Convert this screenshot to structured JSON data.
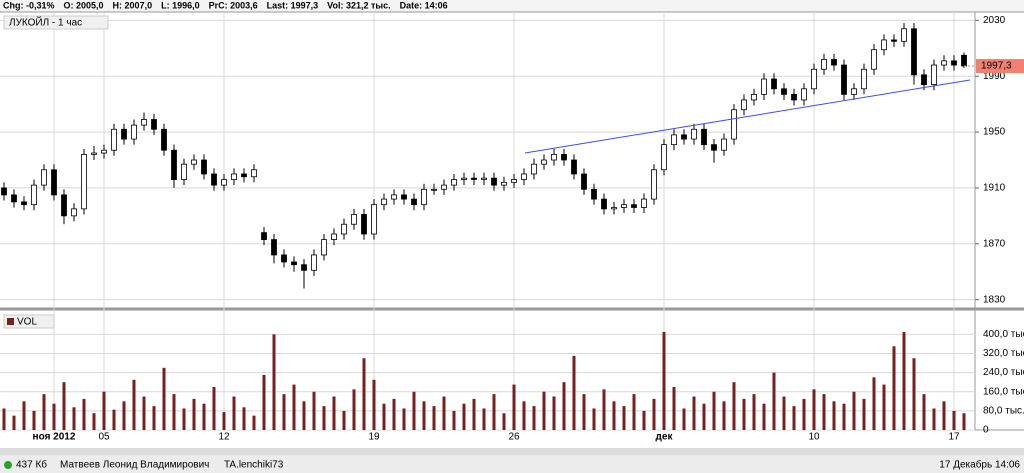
{
  "header": {
    "items": [
      "Chg: -0,31%",
      "O: 2005,0",
      "H: 2007,0",
      "L: 1996,0",
      "PrC: 2003,6",
      "Last: 1997,3",
      "Vol: 321,2 тыс.",
      "Date: 14:06"
    ]
  },
  "status_bar": {
    "size": "437 Кб",
    "user": "Матвеев Леонид Владимирович",
    "account": "TA.lenchiki73",
    "datetime": "17 Декабрь 14:06"
  },
  "chart_data": {
    "type": "candlestick",
    "title": "ЛУКОЙЛ - 1 час",
    "up_color": "#ffffff",
    "down_color": "#000000",
    "grid": true,
    "categories": [
      null,
      null,
      null,
      null,
      null,
      "ноя 2012",
      null,
      null,
      null,
      null,
      "05",
      null,
      null,
      null,
      null,
      null,
      null,
      null,
      null,
      null,
      null,
      null,
      "12",
      null,
      null,
      null,
      null,
      null,
      null,
      null,
      null,
      null,
      null,
      null,
      null,
      null,
      null,
      "19",
      null,
      null,
      null,
      null,
      null,
      null,
      null,
      null,
      null,
      null,
      null,
      null,
      null,
      "26",
      null,
      null,
      null,
      null,
      null,
      null,
      null,
      null,
      null,
      null,
      null,
      null,
      null,
      null,
      "дек",
      null,
      null,
      null,
      null,
      null,
      null,
      null,
      null,
      null,
      null,
      null,
      null,
      null,
      null,
      "10",
      null,
      null,
      null,
      null,
      null,
      null,
      null,
      null,
      null,
      null,
      null,
      null,
      null,
      "17",
      null
    ],
    "open": [
      1910,
      1905,
      1900,
      1898,
      1912,
      1923,
      1905,
      1890,
      1895,
      1934,
      1935,
      1937,
      1952,
      1945,
      1955,
      1959,
      1952,
      1937,
      1916,
      1927,
      1930,
      1920,
      1912,
      1916,
      1920,
      1918,
      1878,
      1873,
      1862,
      1857,
      1855,
      1851,
      1862,
      1873,
      1877,
      1884,
      1891,
      1877,
      1898,
      1902,
      1905,
      1902,
      1898,
      1909,
      1909,
      1912,
      1916,
      1917,
      1916,
      1917,
      1912,
      1914,
      1916,
      1920,
      1927,
      1930,
      1934,
      1930,
      1920,
      1909,
      1902,
      1895,
      1896,
      1898,
      1896,
      1902,
      1923,
      1941,
      1948,
      1945,
      1952,
      1941,
      1937,
      1945,
      1966,
      1973,
      1977,
      1988,
      1981,
      1977,
      1973,
      1981,
      1995,
      2002,
      1998,
      1977,
      1981,
      1995,
      2009,
      2016,
      2015,
      2024,
      1991,
      1984,
      1998,
      2001,
      2005
    ],
    "high": [
      1914,
      1909,
      1904,
      1916,
      1927,
      1927,
      1909,
      1899,
      1938,
      1940,
      1941,
      1956,
      1956,
      1959,
      1964,
      1963,
      1956,
      1941,
      1931,
      1934,
      1934,
      1924,
      1920,
      1924,
      1924,
      1927,
      1882,
      1877,
      1866,
      1861,
      1859,
      1866,
      1877,
      1881,
      1888,
      1895,
      1895,
      1902,
      1906,
      1909,
      1909,
      1906,
      1913,
      1913,
      1916,
      1920,
      1921,
      1921,
      1921,
      1921,
      1918,
      1920,
      1924,
      1931,
      1934,
      1938,
      1938,
      1934,
      1924,
      1913,
      1906,
      1900,
      1902,
      1902,
      1906,
      1927,
      1945,
      1952,
      1952,
      1956,
      1956,
      1945,
      1949,
      1970,
      1977,
      1981,
      1992,
      1992,
      1985,
      1981,
      1985,
      1999,
      2006,
      2006,
      2002,
      1985,
      1999,
      2013,
      2020,
      2020,
      2028,
      2028,
      1995,
      2002,
      2005,
      2005,
      2007
    ],
    "low": [
      1901,
      1896,
      1894,
      1894,
      1908,
      1901,
      1884,
      1886,
      1891,
      1930,
      1931,
      1933,
      1941,
      1941,
      1951,
      1948,
      1933,
      1910,
      1912,
      1923,
      1916,
      1908,
      1908,
      1912,
      1914,
      1914,
      1869,
      1856,
      1853,
      1850,
      1838,
      1847,
      1858,
      1869,
      1873,
      1880,
      1873,
      1873,
      1894,
      1898,
      1898,
      1894,
      1894,
      1905,
      1905,
      1908,
      1912,
      1912,
      1912,
      1908,
      1908,
      1910,
      1912,
      1916,
      1923,
      1926,
      1926,
      1916,
      1905,
      1898,
      1891,
      1891,
      1892,
      1892,
      1892,
      1898,
      1919,
      1937,
      1941,
      1941,
      1937,
      1928,
      1933,
      1941,
      1962,
      1969,
      1973,
      1977,
      1973,
      1969,
      1969,
      1977,
      1991,
      1994,
      1973,
      1973,
      1977,
      1991,
      2005,
      2011,
      2011,
      1984,
      1980,
      1980,
      1994,
      1994,
      1996
    ],
    "close": [
      1905,
      1900,
      1898,
      1912,
      1923,
      1905,
      1890,
      1895,
      1934,
      1935,
      1937,
      1952,
      1945,
      1955,
      1959,
      1952,
      1937,
      1916,
      1927,
      1930,
      1920,
      1912,
      1916,
      1920,
      1918,
      1923,
      1873,
      1862,
      1857,
      1855,
      1851,
      1862,
      1873,
      1877,
      1884,
      1891,
      1877,
      1898,
      1902,
      1905,
      1902,
      1898,
      1909,
      1909,
      1912,
      1916,
      1917,
      1916,
      1917,
      1912,
      1914,
      1916,
      1920,
      1927,
      1930,
      1934,
      1930,
      1920,
      1909,
      1902,
      1895,
      1896,
      1898,
      1896,
      1902,
      1923,
      1941,
      1948,
      1945,
      1952,
      1941,
      1937,
      1945,
      1966,
      1973,
      1977,
      1988,
      1981,
      1977,
      1973,
      1981,
      1995,
      2002,
      1998,
      1977,
      1981,
      1995,
      2009,
      2016,
      2015,
      2024,
      1991,
      1984,
      1998,
      2001,
      1998,
      1997.3
    ],
    "ylim": [
      1824,
      2036
    ],
    "yticks": [
      1830,
      1870,
      1910,
      1950,
      1990,
      2030
    ],
    "last_price": {
      "value": 1997.3,
      "label": "1997,3",
      "color": "#f08070"
    },
    "volume": {
      "name": "VOL",
      "color": "#7a1f1f",
      "ylim": [
        0,
        460
      ],
      "yticks": [
        0,
        {
          "value": 80,
          "label": "80,0 тыс."
        },
        {
          "value": 160,
          "label": "160,0 тыс."
        },
        {
          "value": 240,
          "label": "240,0 тыс."
        },
        {
          "value": 320,
          "label": "320,0 тыс."
        },
        {
          "value": 400,
          "label": "400,0 тыс."
        }
      ],
      "values": [
        90,
        60,
        120,
        80,
        150,
        110,
        200,
        95,
        130,
        70,
        160,
        85,
        120,
        210,
        140,
        100,
        260,
        150,
        90,
        130,
        110,
        180,
        75,
        140,
        95,
        60,
        230,
        400,
        150,
        190,
        120,
        160,
        100,
        140,
        80,
        170,
        300,
        210,
        110,
        130,
        90,
        160,
        120,
        100,
        140,
        80,
        110,
        130,
        90,
        150,
        70,
        190,
        120,
        100,
        160,
        140,
        200,
        310,
        150,
        90,
        170,
        120,
        100,
        150,
        80,
        130,
        410,
        180,
        90,
        140,
        110,
        160,
        120,
        200,
        130,
        150,
        110,
        240,
        140,
        100,
        130,
        170,
        150,
        120,
        110,
        160,
        130,
        220,
        190,
        350,
        410,
        300,
        150,
        90,
        120,
        80,
        70
      ]
    }
  }
}
